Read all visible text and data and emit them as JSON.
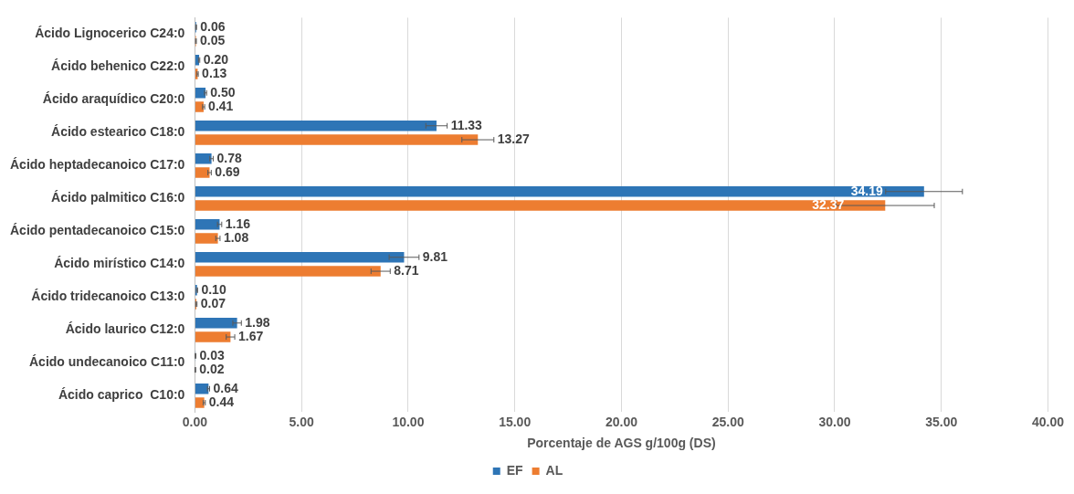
{
  "chart_data": {
    "type": "bar",
    "orientation": "horizontal",
    "xlabel": "Porcentaje de AGS g/100g (DS)",
    "categories": [
      "Ácido Lignocerico C24:0",
      "Ácido behenico C22:0",
      "Ácido araquídico C20:0",
      "Ácido estearico C18:0",
      "Ácido heptadecanoico C17:0",
      "Ácido palmitico C16:0",
      "Ácido pentadecanoico C15:0",
      "Ácido mirístico C14:0",
      "Ácido tridecanoico C13:0",
      "Ácido laurico C12:0",
      "Ácido undecanoico C11:0",
      "Ácido caprico  C10:0"
    ],
    "series": [
      {
        "name": "EF",
        "color": "#2e75b6",
        "values": [
          0.06,
          0.2,
          0.5,
          11.33,
          0.78,
          34.19,
          1.16,
          9.81,
          0.1,
          1.98,
          0.03,
          0.64
        ],
        "value_labels": [
          "0.06",
          "0.20",
          "0.50",
          "11.33",
          "0.78",
          "34.19",
          "1.16",
          "9.81",
          "0.10",
          "1.98",
          "0.03",
          "0.64"
        ],
        "errors": [
          0.02,
          0.03,
          0.05,
          0.5,
          0.08,
          1.8,
          0.1,
          0.7,
          0.03,
          0.2,
          0.02,
          0.05
        ]
      },
      {
        "name": "AL",
        "color": "#ed7d31",
        "values": [
          0.05,
          0.13,
          0.41,
          13.27,
          0.69,
          32.37,
          1.08,
          8.71,
          0.07,
          1.67,
          0.02,
          0.44
        ],
        "value_labels": [
          "0.05",
          "0.13",
          "0.41",
          "13.27",
          "0.69",
          "32.37",
          "1.08",
          "8.71",
          "0.07",
          "1.67",
          "0.02",
          "0.44"
        ],
        "errors": [
          0.02,
          0.03,
          0.05,
          0.75,
          0.08,
          2.3,
          0.1,
          0.45,
          0.03,
          0.2,
          0.02,
          0.05
        ]
      }
    ],
    "xlim": [
      0,
      40
    ],
    "xticks": [
      {
        "value": 0,
        "label": "0.00"
      },
      {
        "value": 5,
        "label": "5.00"
      },
      {
        "value": 10,
        "label": "10.00"
      },
      {
        "value": 15,
        "label": "15.00"
      },
      {
        "value": 20,
        "label": "20.00"
      },
      {
        "value": 25,
        "label": "25.00"
      },
      {
        "value": 30,
        "label": "30.00"
      },
      {
        "value": 35,
        "label": "35.00"
      },
      {
        "value": 40,
        "label": "40.00"
      }
    ],
    "grid": "x",
    "legend": "bottom"
  }
}
